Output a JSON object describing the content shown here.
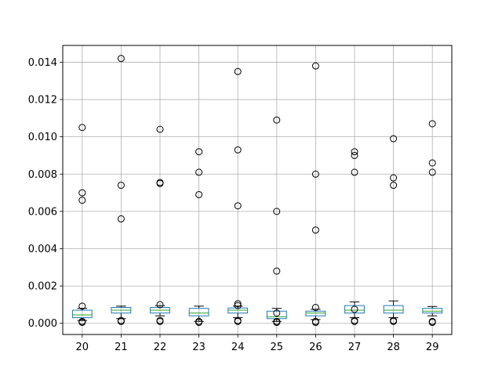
{
  "chart_data": {
    "type": "box",
    "categories": [
      "20",
      "21",
      "22",
      "23",
      "24",
      "25",
      "26",
      "27",
      "28",
      "29"
    ],
    "ylim": [
      -0.0006,
      0.0149
    ],
    "yticks": [
      0,
      0.002,
      0.004,
      0.006,
      0.008,
      0.01,
      0.012,
      0.014
    ],
    "ytick_labels": [
      "0.000",
      "0.002",
      "0.004",
      "0.006",
      "0.008",
      "0.010",
      "0.012",
      "0.014"
    ],
    "grid": true,
    "colors": {
      "box": "#1f77b4",
      "median": "#2ca02c",
      "whisker": "#000000",
      "grid": "#b0b0b0",
      "axes": "#000000"
    },
    "boxes": [
      {
        "category": "20",
        "whislo": 0.00015,
        "q1": 0.0003,
        "med": 0.00045,
        "q3": 0.0007,
        "whishi": 0.0008,
        "fliers": [
          5e-05,
          0.0001,
          0.00092,
          0.0066,
          0.007,
          0.0105
        ]
      },
      {
        "category": "21",
        "whislo": 0.00025,
        "q1": 0.00055,
        "med": 0.0007,
        "q3": 0.00085,
        "whishi": 0.00092,
        "fliers": [
          0.0001,
          0.00015,
          0.0056,
          0.0074,
          0.0142
        ]
      },
      {
        "category": "22",
        "whislo": 0.0004,
        "q1": 0.00055,
        "med": 0.0007,
        "q3": 0.00085,
        "whishi": 0.00095,
        "fliers": [
          0.0001,
          0.00015,
          0.001,
          0.0075,
          0.00755,
          0.0104
        ]
      },
      {
        "category": "23",
        "whislo": 0.0001,
        "q1": 0.0004,
        "med": 0.00055,
        "q3": 0.0008,
        "whishi": 0.00092,
        "fliers": [
          5e-05,
          0.0001,
          0.0069,
          0.0081,
          0.0092
        ]
      },
      {
        "category": "24",
        "whislo": 0.0003,
        "q1": 0.00055,
        "med": 0.0007,
        "q3": 0.00082,
        "whishi": 0.00092,
        "fliers": [
          0.0001,
          0.00015,
          0.00095,
          0.00105,
          0.0063,
          0.0093,
          0.0135
        ]
      },
      {
        "category": "25",
        "whislo": 0.0001,
        "q1": 0.00025,
        "med": 0.00035,
        "q3": 0.00065,
        "whishi": 0.0008,
        "fliers": [
          5e-05,
          0.0001,
          0.00055,
          0.0028,
          0.006,
          0.0109
        ]
      },
      {
        "category": "26",
        "whislo": 0.0002,
        "q1": 0.0004,
        "med": 0.00055,
        "q3": 0.00065,
        "whishi": 0.00075,
        "fliers": [
          5e-05,
          0.0001,
          0.00085,
          0.005,
          0.008,
          0.0138
        ]
      },
      {
        "category": "27",
        "whislo": 0.0003,
        "q1": 0.00055,
        "med": 0.0007,
        "q3": 0.00095,
        "whishi": 0.00115,
        "fliers": [
          0.0001,
          0.00015,
          0.00075,
          0.0081,
          0.009,
          0.0092
        ]
      },
      {
        "category": "28",
        "whislo": 0.0003,
        "q1": 0.00055,
        "med": 0.0007,
        "q3": 0.00095,
        "whishi": 0.0012,
        "fliers": [
          0.0001,
          0.00015,
          0.0074,
          0.0078,
          0.0099
        ]
      },
      {
        "category": "29",
        "whislo": 0.0004,
        "q1": 0.00055,
        "med": 0.00065,
        "q3": 0.0008,
        "whishi": 0.0009,
        "fliers": [
          5e-05,
          0.0001,
          0.0081,
          0.0086,
          0.0107
        ]
      }
    ]
  }
}
